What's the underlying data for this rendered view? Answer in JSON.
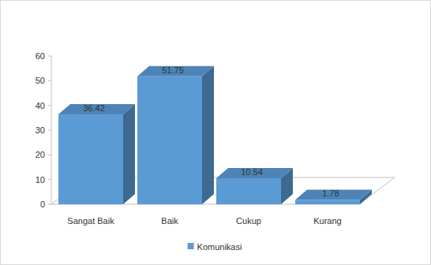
{
  "chart_data": {
    "type": "bar",
    "categories": [
      "Sangat Baik",
      "Baik",
      "Cukup",
      "Kurang"
    ],
    "series": [
      {
        "name": "Komunikasi",
        "color": "#5b9bd5",
        "values": [
          36.42,
          51.75,
          10.54,
          1.78
        ]
      }
    ],
    "ylim": [
      0,
      60
    ],
    "yticks": [
      0,
      10,
      20,
      30,
      40,
      50,
      60
    ],
    "data_labels": true,
    "legend": "bottom",
    "grid": false
  }
}
